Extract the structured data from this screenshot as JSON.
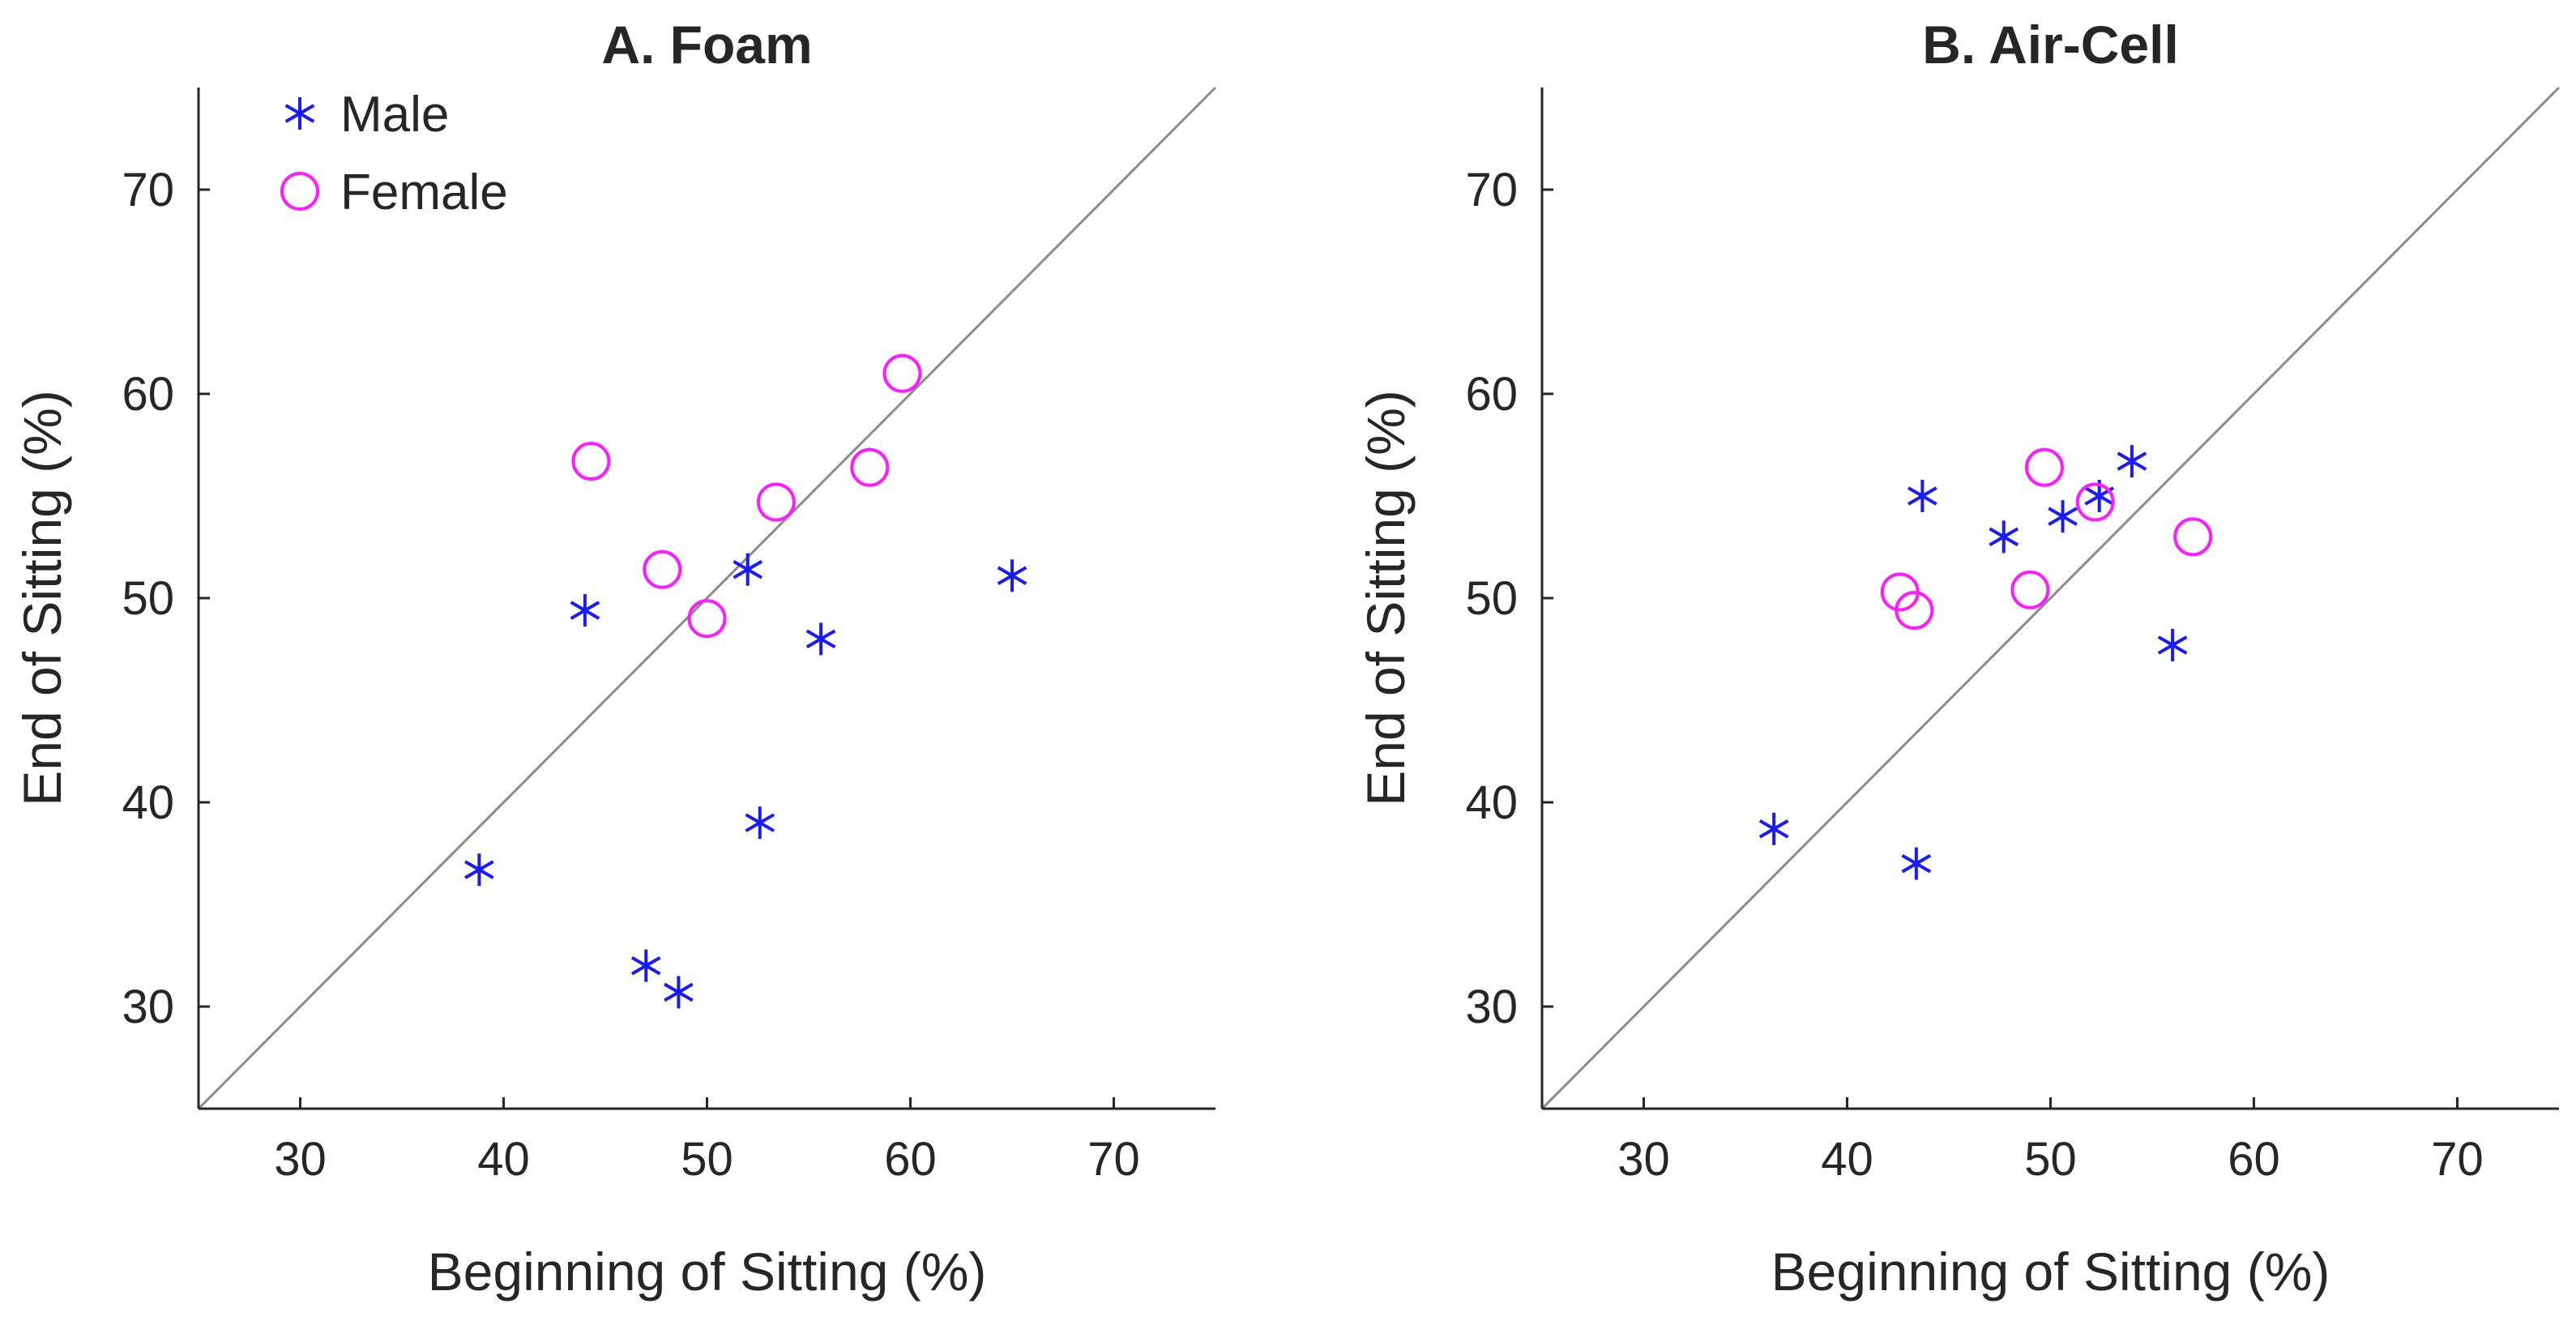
{
  "colors": {
    "male": "#1a1aff",
    "female": "#ff1aff",
    "axis": "#262626",
    "reference_line": "#8c8c8c"
  },
  "legend": {
    "male_label": "Male",
    "female_label": "Female",
    "placement": "top-left of panel A"
  },
  "chart_data": [
    {
      "type": "scatter",
      "title": "A. Foam",
      "xlabel": "Beginning of Sitting (%)",
      "ylabel": "End of Sitting (%)",
      "xlim": [
        25,
        75
      ],
      "ylim": [
        25,
        75
      ],
      "xticks": [
        30,
        40,
        50,
        60,
        70
      ],
      "yticks": [
        30,
        40,
        50,
        60,
        70
      ],
      "reference_line": "y = x",
      "series": [
        {
          "name": "Male",
          "marker": "asterisk",
          "points": [
            {
              "x": 38.8,
              "y": 36.7
            },
            {
              "x": 44.0,
              "y": 49.4
            },
            {
              "x": 47.0,
              "y": 32.0
            },
            {
              "x": 48.6,
              "y": 30.7
            },
            {
              "x": 52.0,
              "y": 51.4
            },
            {
              "x": 52.6,
              "y": 39.0
            },
            {
              "x": 55.6,
              "y": 48.0
            },
            {
              "x": 65.0,
              "y": 51.1
            }
          ]
        },
        {
          "name": "Female",
          "marker": "circle",
          "points": [
            {
              "x": 44.3,
              "y": 56.7
            },
            {
              "x": 47.8,
              "y": 51.4
            },
            {
              "x": 50.0,
              "y": 49.0
            },
            {
              "x": 53.4,
              "y": 54.7
            },
            {
              "x": 58.0,
              "y": 56.4
            },
            {
              "x": 59.6,
              "y": 61.0
            }
          ]
        }
      ]
    },
    {
      "type": "scatter",
      "title": "B. Air-Cell",
      "xlabel": "Beginning of Sitting (%)",
      "ylabel": "End of Sitting (%)",
      "xlim": [
        25,
        75
      ],
      "ylim": [
        25,
        75
      ],
      "xticks": [
        30,
        40,
        50,
        60,
        70
      ],
      "yticks": [
        30,
        40,
        50,
        60,
        70
      ],
      "reference_line": "y = x",
      "series": [
        {
          "name": "Male",
          "marker": "asterisk",
          "points": [
            {
              "x": 36.4,
              "y": 38.7
            },
            {
              "x": 43.4,
              "y": 37.0
            },
            {
              "x": 43.7,
              "y": 55.0
            },
            {
              "x": 47.7,
              "y": 53.0
            },
            {
              "x": 50.6,
              "y": 54.0
            },
            {
              "x": 52.4,
              "y": 55.0
            },
            {
              "x": 54.0,
              "y": 56.7
            },
            {
              "x": 56.0,
              "y": 47.7
            }
          ]
        },
        {
          "name": "Female",
          "marker": "circle",
          "points": [
            {
              "x": 42.6,
              "y": 50.3
            },
            {
              "x": 43.3,
              "y": 49.4
            },
            {
              "x": 49.0,
              "y": 50.4
            },
            {
              "x": 49.7,
              "y": 56.4
            },
            {
              "x": 52.2,
              "y": 54.7
            },
            {
              "x": 57.0,
              "y": 53.0
            }
          ]
        }
      ]
    }
  ]
}
